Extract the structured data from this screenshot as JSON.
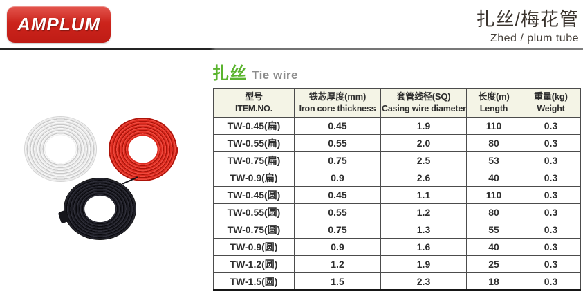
{
  "page": {
    "brand": {
      "logo_text": "AMPLUM"
    },
    "title": {
      "zh": "扎丝/梅花管",
      "en": "Zhed / plum tube"
    }
  },
  "section": {
    "title_zh": "扎丝",
    "title_en": "Tie wire"
  },
  "product_photo": {
    "description": "Three coils of tie wire",
    "coils": [
      {
        "name": "white-wire-coil",
        "color": "#e9e9e9"
      },
      {
        "name": "red-wire-coil",
        "color": "#dd2b20"
      },
      {
        "name": "black-wire-coil",
        "color": "#15151b"
      }
    ]
  },
  "table": {
    "columns": [
      {
        "zh": "型号",
        "en": "ITEM.NO."
      },
      {
        "zh": "铁芯厚度(mm)",
        "en": "Iron core thickness"
      },
      {
        "zh": "套管线径(SQ)",
        "en": "Casing wire diameter"
      },
      {
        "zh": "长度(m)",
        "en": "Length"
      },
      {
        "zh": "重量(kg)",
        "en": "Weight"
      }
    ],
    "rows": [
      [
        "TW-0.45(扁)",
        "0.45",
        "1.9",
        "110",
        "0.3"
      ],
      [
        "TW-0.55(扁)",
        "0.55",
        "2.0",
        "80",
        "0.3"
      ],
      [
        "TW-0.75(扁)",
        "0.75",
        "2.5",
        "53",
        "0.3"
      ],
      [
        "TW-0.9(扁)",
        "0.9",
        "2.6",
        "40",
        "0.3"
      ],
      [
        "TW-0.45(圆)",
        "0.45",
        "1.1",
        "110",
        "0.3"
      ],
      [
        "TW-0.55(圆)",
        "0.55",
        "1.2",
        "80",
        "0.3"
      ],
      [
        "TW-0.75(圆)",
        "0.75",
        "1.3",
        "55",
        "0.3"
      ],
      [
        "TW-0.9(圆)",
        "0.9",
        "1.6",
        "40",
        "0.3"
      ],
      [
        "TW-1.2(圆)",
        "1.2",
        "1.9",
        "25",
        "0.3"
      ],
      [
        "TW-1.5(圆)",
        "1.5",
        "2.3",
        "18",
        "0.3"
      ]
    ]
  },
  "colors": {
    "logo_red": "#cc241c",
    "accent_green": "#5ab42e",
    "table_header_bg": "#f4f4e6"
  }
}
